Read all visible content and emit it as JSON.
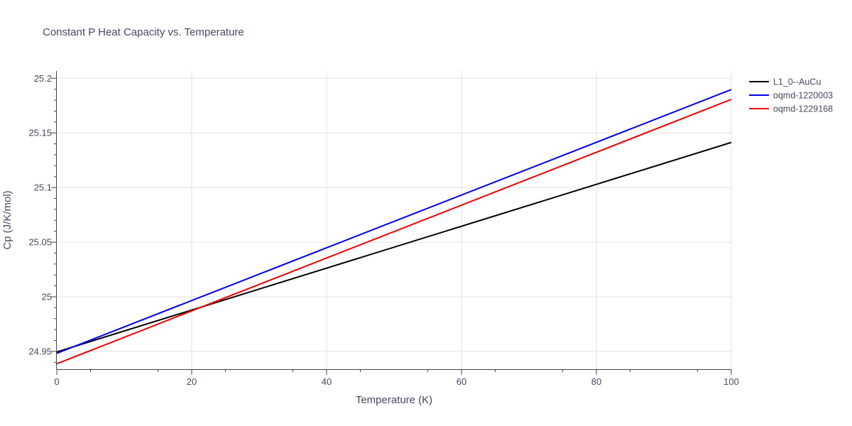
{
  "chart_data": {
    "type": "line",
    "title": "Constant P Heat Capacity vs. Temperature",
    "xlabel": "Temperature (K)",
    "ylabel": "Cp (J/K/mol)",
    "xlim": [
      0,
      100
    ],
    "ylim": [
      24.9337,
      25.2067
    ],
    "xticks": [
      0,
      20,
      40,
      60,
      80,
      100
    ],
    "xtick_labels": [
      "0",
      "20",
      "40",
      "60",
      "80",
      "100"
    ],
    "yticks": [
      24.95,
      25.0,
      25.05,
      25.1,
      25.15,
      25.2
    ],
    "ytick_labels": [
      "24.95",
      "25",
      "25.05",
      "25.1",
      "25.15",
      "25.2"
    ],
    "grid": true,
    "legend_position": "top-right, outside plot area",
    "series": [
      {
        "name": "L1_0--AuCu",
        "color": "#000000",
        "x": [
          0,
          100
        ],
        "y": [
          24.9495,
          25.1413
        ]
      },
      {
        "name": "oqmd-1220003",
        "color": "#0000ee",
        "x": [
          0,
          100
        ],
        "y": [
          24.9483,
          25.1897
        ]
      },
      {
        "name": "oqmd-1229168",
        "color": "#ee0000",
        "x": [
          0,
          100
        ],
        "y": [
          24.9387,
          25.1807
        ]
      }
    ]
  }
}
